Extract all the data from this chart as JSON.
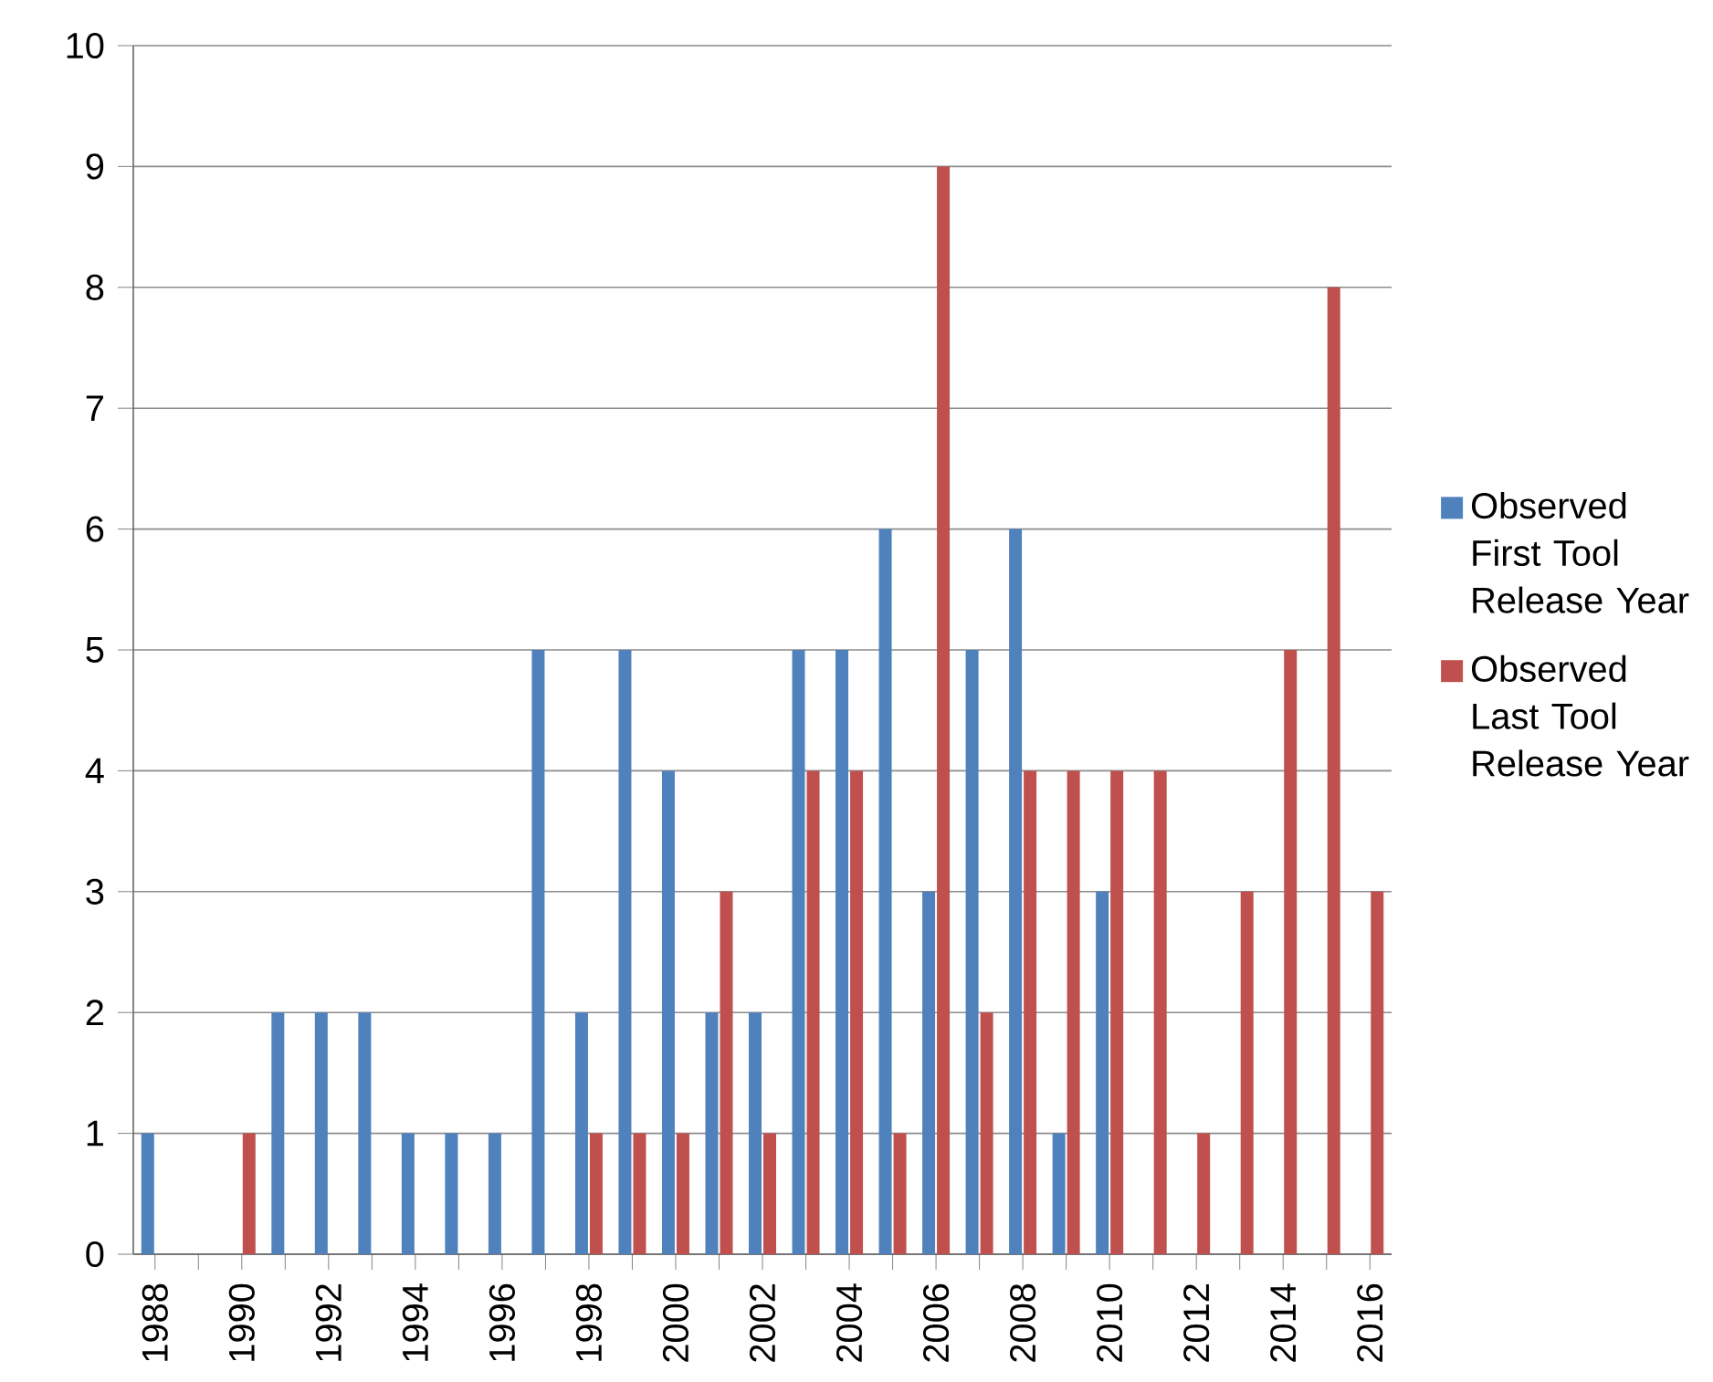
{
  "chart_data": {
    "type": "bar",
    "categories": [
      "1988",
      null,
      "1990",
      null,
      "1992",
      null,
      "1994",
      null,
      "1996",
      null,
      "1998",
      null,
      "2000",
      null,
      "2002",
      null,
      "2004",
      null,
      "2006",
      null,
      "2008",
      null,
      "2010",
      null,
      "2012",
      null,
      "2014",
      null,
      "2016"
    ],
    "series": [
      {
        "name": "Observed First Tool Release Year",
        "color": "#4f81bd",
        "values": [
          1,
          0,
          0,
          2,
          2,
          2,
          1,
          1,
          1,
          5,
          2,
          5,
          4,
          2,
          2,
          5,
          5,
          6,
          3,
          5,
          6,
          1,
          3,
          0,
          0,
          0,
          0,
          0,
          0
        ]
      },
      {
        "name": "Observed Last Tool Release Year",
        "color": "#c0504d",
        "values": [
          0,
          0,
          1,
          0,
          0,
          0,
          0,
          0,
          0,
          0,
          1,
          1,
          1,
          3,
          1,
          4,
          4,
          1,
          9,
          2,
          4,
          4,
          4,
          4,
          1,
          3,
          5,
          8,
          3
        ]
      }
    ],
    "ylim": [
      0,
      10
    ],
    "yticks": [
      0,
      1,
      2,
      3,
      4,
      5,
      6,
      7,
      8,
      9,
      10
    ],
    "grid": "y",
    "legend": "right"
  }
}
